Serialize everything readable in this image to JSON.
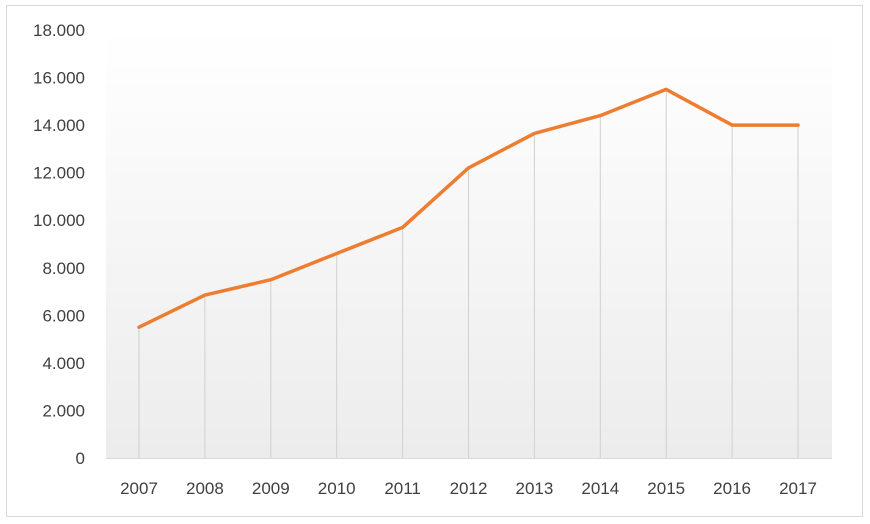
{
  "chart_data": {
    "type": "line",
    "title": "",
    "xlabel": "",
    "ylabel": "",
    "categories": [
      "2007",
      "2008",
      "2009",
      "2010",
      "2011",
      "2012",
      "2013",
      "2014",
      "2015",
      "2016",
      "2017"
    ],
    "series": [
      {
        "values": [
          5500,
          6850,
          7500,
          8600,
          9700,
          12200,
          13650,
          14400,
          15500,
          14000,
          14000
        ],
        "color": "#ed7d31"
      }
    ],
    "ylim": [
      0,
      18000
    ],
    "yticks": [
      0,
      2000,
      4000,
      6000,
      8000,
      10000,
      12000,
      14000,
      16000,
      18000
    ],
    "ytick_labels": [
      "0",
      "2.000",
      "4.000",
      "6.000",
      "8.000",
      "10.000",
      "12.000",
      "14.000",
      "16.000",
      "18.000"
    ],
    "gridlines": "vertical drop lines at each category",
    "background": "light gray gradient plot area",
    "legend": "none"
  }
}
